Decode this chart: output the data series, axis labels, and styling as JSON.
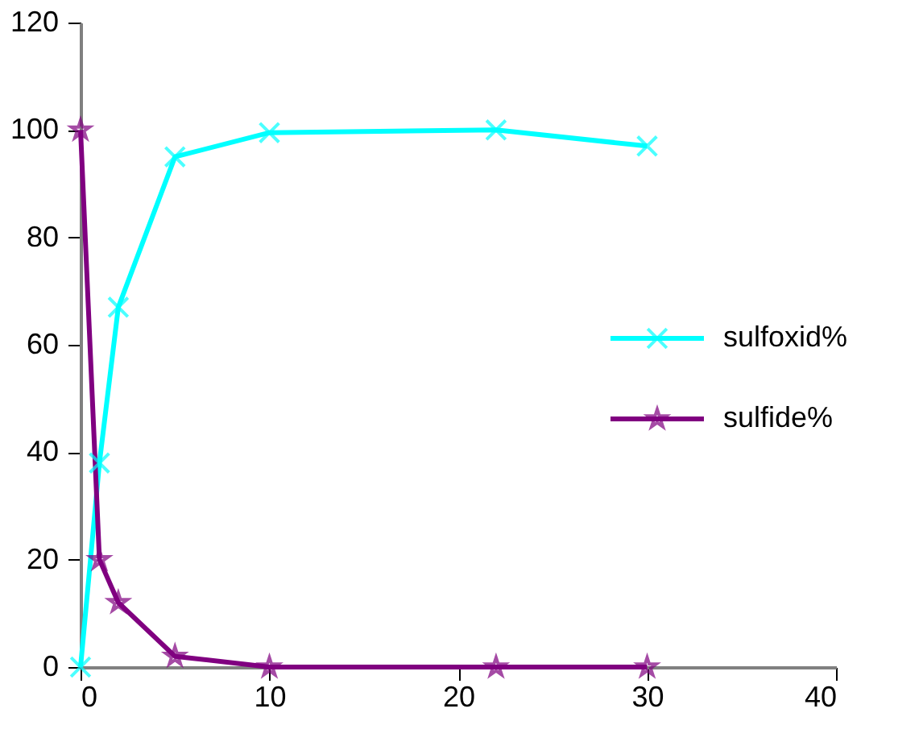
{
  "chart_data": {
    "type": "line",
    "x": [
      0,
      1,
      2,
      5,
      10,
      22,
      30
    ],
    "series": [
      {
        "name": "sulfoxid%",
        "color": "#00ffff",
        "marker": "cross",
        "values": [
          0,
          38,
          67,
          95,
          99.5,
          100,
          97
        ]
      },
      {
        "name": "sulfide%",
        "color": "#800080",
        "marker": "star",
        "values": [
          100,
          20,
          12,
          2,
          0,
          0,
          0
        ]
      }
    ],
    "xlim": [
      0,
      40
    ],
    "xticks": [
      0,
      10,
      20,
      30,
      40
    ],
    "ylim": [
      0,
      120
    ],
    "yticks": [
      0,
      20,
      40,
      60,
      80,
      100,
      120
    ],
    "grid": false,
    "legend": "right",
    "line_style": "solid"
  }
}
